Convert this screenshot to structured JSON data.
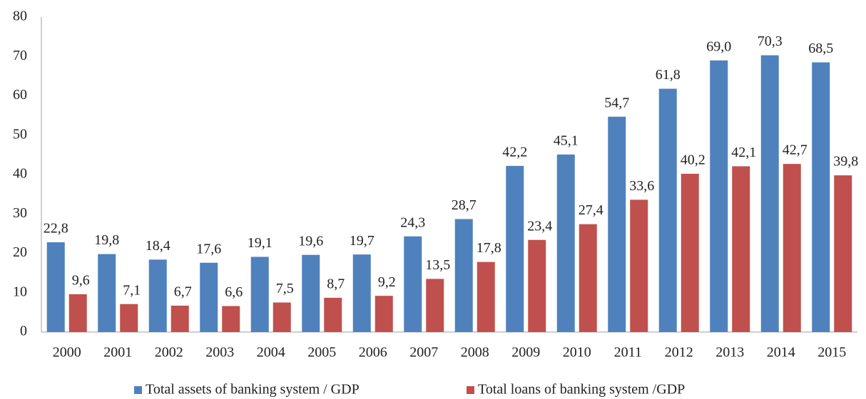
{
  "chart_data": {
    "type": "bar",
    "categories": [
      "2000",
      "2001",
      "2002",
      "2003",
      "2004",
      "2005",
      "2006",
      "2007",
      "2008",
      "2009",
      "2010",
      "2011",
      "2012",
      "2013",
      "2014",
      "2015"
    ],
    "series": [
      {
        "name": "Total assets of banking system / GDP",
        "color": "#4f81bd",
        "values": [
          22.8,
          19.8,
          18.4,
          17.6,
          19.1,
          19.6,
          19.7,
          24.3,
          28.7,
          42.2,
          45.1,
          54.7,
          61.8,
          69.0,
          70.3,
          68.5
        ],
        "value_labels": [
          "22,8",
          "19,8",
          "18,4",
          "17,6",
          "19,1",
          "19,6",
          "19,7",
          "24,3",
          "28,7",
          "42,2",
          "45,1",
          "54,7",
          "61,8",
          "69,0",
          "70,3",
          "68,5"
        ]
      },
      {
        "name": "Total loans of banking system /GDP",
        "color": "#c0504d",
        "values": [
          9.6,
          7.1,
          6.7,
          6.6,
          7.5,
          8.7,
          9.2,
          13.5,
          17.8,
          23.4,
          27.4,
          33.6,
          40.2,
          42.1,
          42.7,
          39.8
        ],
        "value_labels": [
          "9,6",
          "7,1",
          "6,7",
          "6,6",
          "7,5",
          "8,7",
          "9,2",
          "13,5",
          "17,8",
          "23,4",
          "27,4",
          "33,6",
          "40,2",
          "42,1",
          "42,7",
          "39,8"
        ]
      }
    ],
    "ylim": [
      0,
      80
    ],
    "yticks": [
      0,
      10,
      20,
      30,
      40,
      50,
      60,
      70,
      80
    ],
    "grid": false,
    "legend": "bottom"
  }
}
